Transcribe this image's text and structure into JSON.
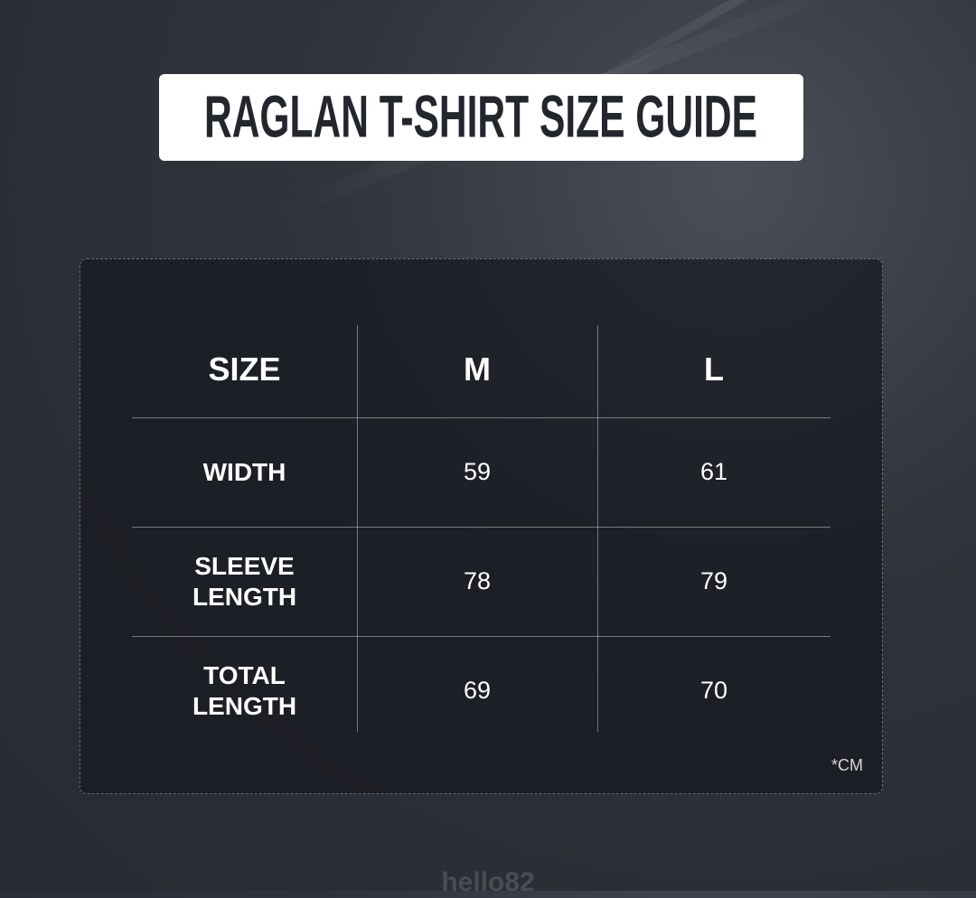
{
  "title": "RAGLAN T-SHIRT SIZE GUIDE",
  "table": {
    "header": [
      "SIZE",
      "M",
      "L"
    ],
    "rows": [
      [
        "WIDTH",
        "59",
        "61"
      ],
      [
        "SLEEVE LENGTH",
        "78",
        "79"
      ],
      [
        "TOTAL LENGTH",
        "69",
        "70"
      ]
    ]
  },
  "note": "*CM",
  "watermark": "hello82"
}
